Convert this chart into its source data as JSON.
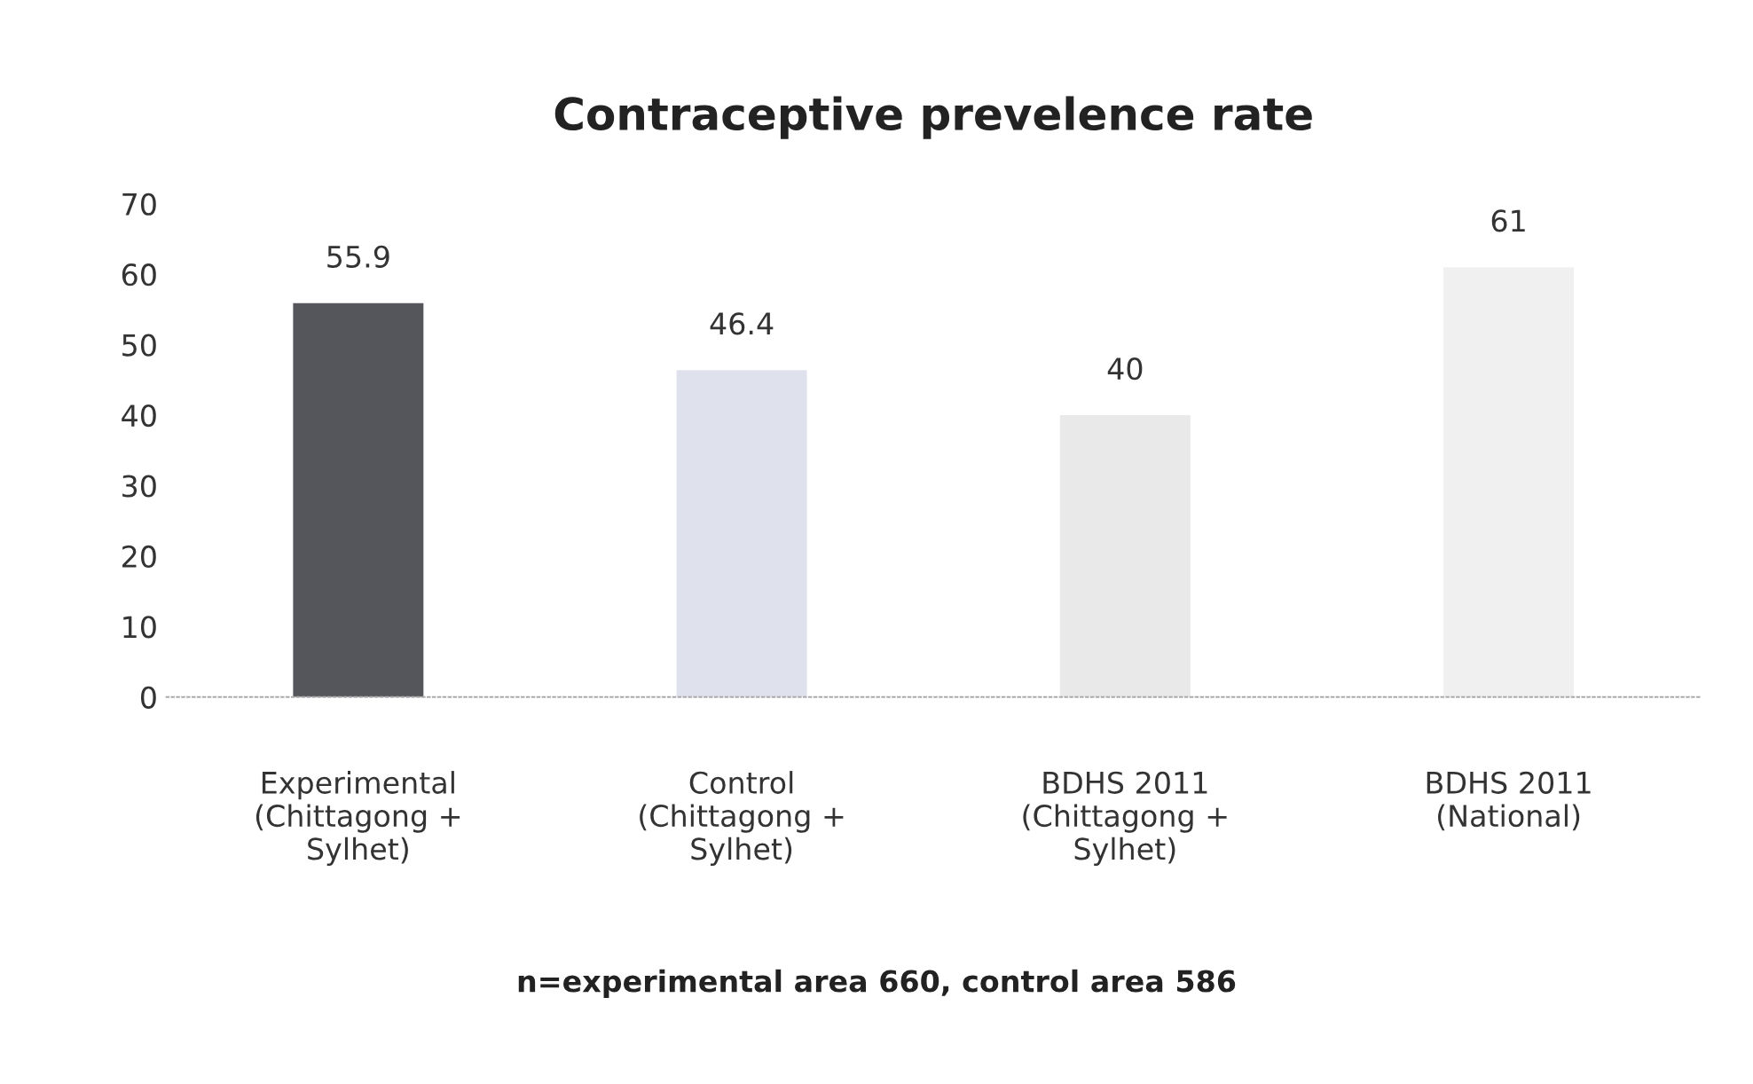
{
  "chart_data": {
    "type": "bar",
    "title": "Contraceptive prevelence rate",
    "categories": [
      "Experimental\n(Chittagong +\nSylhet)",
      "Control\n(Chittagong +\nSylhet)",
      "BDHS 2011\n(Chittagong +\nSylhet)",
      "BDHS 2011\n(National)"
    ],
    "values": [
      55.9,
      46.4,
      40,
      61
    ],
    "colors": [
      "#55565c",
      "#dfe1ec",
      "#e9e9e9",
      "#f0f0f0"
    ],
    "ylim": [
      0,
      70
    ],
    "yticks": [
      0,
      10,
      20,
      30,
      40,
      50,
      60,
      70
    ],
    "data_labels": true,
    "grid": false,
    "annotations": [
      "n=experimental area 660, control area 586"
    ]
  }
}
